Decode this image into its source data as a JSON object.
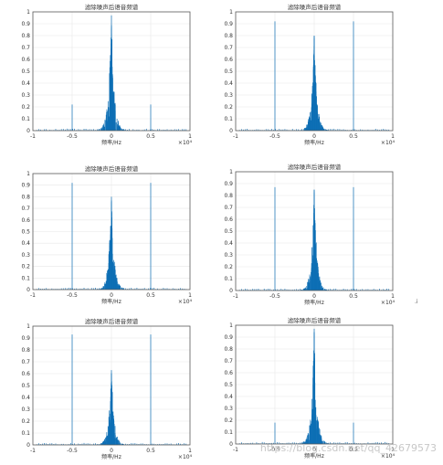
{
  "figure": {
    "watermark": "https://blog.csdn.net/qq_42679573"
  },
  "chart_data": [
    {
      "type": "line",
      "title": "滤除噪声后语音频谱",
      "xlabel": "频率/Hz",
      "x_multiplier": "×10⁴",
      "xlim": [
        -1,
        1
      ],
      "ylim": [
        0,
        1
      ],
      "xticks": [
        "-1",
        "-0.5",
        "0",
        "0.5",
        "1"
      ],
      "yticks": [
        "0",
        "0.1",
        "0.2",
        "0.3",
        "0.4",
        "0.5",
        "0.6",
        "0.7",
        "0.8",
        "0.9",
        "1"
      ],
      "grid": true,
      "series": [
        {
          "peak": 0.97,
          "side_spikes": [
            {
              "x": -0.5,
              "y": 0.22
            },
            {
              "x": 0.5,
              "y": 0.22
            }
          ]
        }
      ]
    },
    {
      "type": "line",
      "title": "滤除噪声后语音频谱",
      "xlabel": "频率/Hz",
      "x_multiplier": "×10⁴",
      "xlim": [
        -1,
        1
      ],
      "ylim": [
        0,
        1
      ],
      "xticks": [
        "-1",
        "-0.5",
        "0",
        "0.5",
        "1"
      ],
      "yticks": [
        "0",
        "0.1",
        "0.2",
        "0.3",
        "0.4",
        "0.5",
        "0.6",
        "0.7",
        "0.8",
        "0.9",
        "1"
      ],
      "grid": true,
      "series": [
        {
          "peak": 0.8,
          "side_spikes": [
            {
              "x": -0.5,
              "y": 0.92
            },
            {
              "x": 0.5,
              "y": 0.92
            }
          ]
        }
      ]
    },
    {
      "type": "line",
      "title": "滤除噪声后语音频谱",
      "xlabel": "频率/Hz",
      "x_multiplier": "×10⁴",
      "xlim": [
        -1,
        1
      ],
      "ylim": [
        0,
        1
      ],
      "xticks": [
        "-1",
        "-0.5",
        "0",
        "0.5",
        "1"
      ],
      "yticks": [
        "0",
        "0.1",
        "0.2",
        "0.3",
        "0.4",
        "0.5",
        "0.6",
        "0.7",
        "0.8",
        "0.9",
        "1"
      ],
      "grid": true,
      "series": [
        {
          "peak": 0.8,
          "side_spikes": [
            {
              "x": -0.5,
              "y": 0.92
            },
            {
              "x": 0.5,
              "y": 0.92
            }
          ]
        }
      ]
    },
    {
      "type": "line",
      "title": "滤除噪声后语音频谱",
      "xlabel": "频率/Hz",
      "x_multiplier": "×10⁴",
      "xlim": [
        -1,
        1
      ],
      "ylim": [
        0,
        1
      ],
      "xticks": [
        "-1",
        "-0.5",
        "0",
        "0.5",
        "1"
      ],
      "yticks": [
        "0",
        "0.1",
        "0.2",
        "0.3",
        "0.4",
        "0.5",
        "0.6",
        "0.7",
        "0.8",
        "0.9",
        "1"
      ],
      "grid": true,
      "series": [
        {
          "peak": 0.85,
          "side_spikes": [
            {
              "x": -0.5,
              "y": 0.87
            },
            {
              "x": 0.5,
              "y": 0.87
            }
          ]
        }
      ]
    },
    {
      "type": "line",
      "title": "滤除噪声后语音频谱",
      "xlabel": "频率/Hz",
      "x_multiplier": "×10⁴",
      "xlim": [
        -1,
        1
      ],
      "ylim": [
        0,
        1
      ],
      "xticks": [
        "-1",
        "-0.5",
        "0",
        "0.5",
        "1"
      ],
      "yticks": [
        "0",
        "0.1",
        "0.2",
        "0.3",
        "0.4",
        "0.5",
        "0.6",
        "0.7",
        "0.8",
        "0.9",
        "1"
      ],
      "grid": true,
      "series": [
        {
          "peak": 0.63,
          "side_spikes": [
            {
              "x": -0.5,
              "y": 0.93
            },
            {
              "x": 0.5,
              "y": 0.93
            }
          ]
        }
      ]
    },
    {
      "type": "line",
      "title": "滤除噪声后语音频谱",
      "xlabel": "频率/Hz",
      "x_multiplier": "×10⁴",
      "xlim": [
        -1,
        1
      ],
      "ylim": [
        0,
        1
      ],
      "xticks": [
        "-1",
        "-0.5",
        "0",
        "0.5",
        "1"
      ],
      "yticks": [
        "0",
        "0.1",
        "0.2",
        "0.3",
        "0.4",
        "0.5",
        "0.6",
        "0.7",
        "0.8",
        "0.9",
        "1"
      ],
      "grid": true,
      "series": [
        {
          "peak": 0.97,
          "side_spikes": [
            {
              "x": -0.5,
              "y": 0.18
            },
            {
              "x": 0.5,
              "y": 0.18
            }
          ]
        }
      ]
    }
  ]
}
